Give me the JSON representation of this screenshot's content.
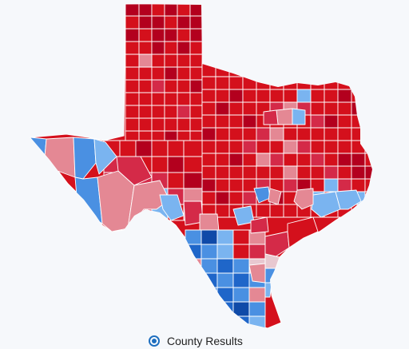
{
  "map": {
    "colors": {
      "safe_r": "#b3001e",
      "strong_r": "#d4101c",
      "likely_r": "#d42a48",
      "lean_r": "#e48894",
      "tossup": "#e8c8d0",
      "lean_d": "#7ab4f0",
      "likely_d": "#4a90e2",
      "strong_d": "#1f66c9",
      "safe_d": "#0f4aa8",
      "border": "#ffffff"
    }
  },
  "legend": {
    "option_label": "County Results",
    "selected": true
  }
}
